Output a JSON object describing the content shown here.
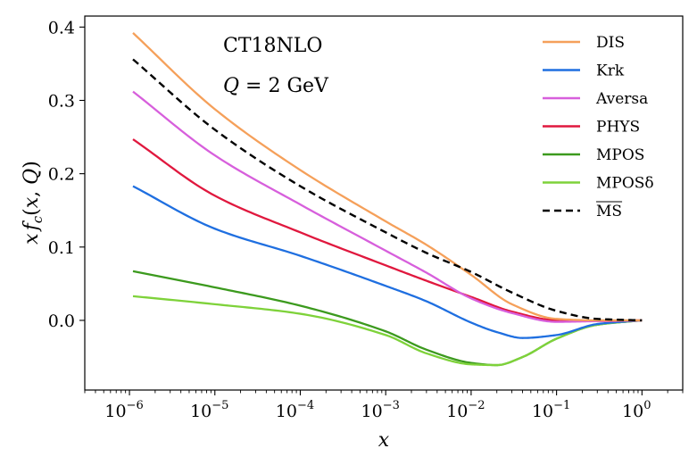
{
  "chart_data": {
    "type": "line",
    "xscale": "log",
    "xlabel": "x",
    "ylabel": "x f_c(x, Q)",
    "ylabel_parts": [
      "x",
      "f",
      "c",
      "(",
      "x",
      ", ",
      "Q",
      ")"
    ],
    "xlim": [
      3e-07,
      3.0
    ],
    "ylim": [
      -0.095,
      0.415
    ],
    "xticks": [
      {
        "exp": "−6",
        "value": 1e-06
      },
      {
        "exp": "−5",
        "value": 1e-05
      },
      {
        "exp": "−4",
        "value": 0.0001
      },
      {
        "exp": "−3",
        "value": 0.001
      },
      {
        "exp": "−2",
        "value": 0.01
      },
      {
        "exp": "−1",
        "value": 0.1
      },
      {
        "exp": "0",
        "value": 1
      }
    ],
    "xtick_base": "10",
    "yticks": [
      {
        "label": "0.0",
        "value": 0.0
      },
      {
        "label": "0.1",
        "value": 0.1
      },
      {
        "label": "0.2",
        "value": 0.2
      },
      {
        "label": "0.3",
        "value": 0.3
      },
      {
        "label": "0.4",
        "value": 0.4
      }
    ],
    "annotations": {
      "line1": "CT18NLO",
      "line2_var": "Q",
      "line2_rest": " = 2 GeV"
    },
    "legend_position": "top-right",
    "series": [
      {
        "name": "DIS",
        "color": "#f5a05a",
        "dash": false,
        "x": [
          1.1e-06,
          1e-05,
          0.0001,
          0.001,
          0.003,
          0.01,
          0.03,
          0.1,
          0.3,
          1.0
        ],
        "y": [
          0.392,
          0.288,
          0.205,
          0.135,
          0.103,
          0.062,
          0.022,
          0.002,
          0.0,
          0.0
        ]
      },
      {
        "name": "Krk",
        "color": "#1f6fe0",
        "dash": false,
        "x": [
          1.1e-06,
          1e-05,
          0.0001,
          0.001,
          0.003,
          0.01,
          0.02,
          0.04,
          0.1,
          0.3,
          1.0
        ],
        "y": [
          0.183,
          0.125,
          0.088,
          0.047,
          0.026,
          -0.003,
          -0.016,
          -0.024,
          -0.02,
          -0.005,
          0.0
        ]
      },
      {
        "name": "Aversa",
        "color": "#d75fdc",
        "dash": false,
        "x": [
          1.1e-06,
          1e-05,
          0.0001,
          0.001,
          0.003,
          0.01,
          0.03,
          0.1,
          0.3,
          1.0
        ],
        "y": [
          0.312,
          0.225,
          0.158,
          0.095,
          0.065,
          0.03,
          0.01,
          -0.002,
          -0.001,
          0.0
        ]
      },
      {
        "name": "PHYS",
        "color": "#e0183e",
        "dash": false,
        "x": [
          1.1e-06,
          1e-05,
          0.0001,
          0.001,
          0.003,
          0.01,
          0.03,
          0.1,
          0.3,
          1.0
        ],
        "y": [
          0.247,
          0.17,
          0.12,
          0.075,
          0.054,
          0.032,
          0.012,
          0.0,
          -0.001,
          0.0
        ]
      },
      {
        "name": "MPOS",
        "color": "#3c9a1e",
        "dash": false,
        "x": [
          1.1e-06,
          1e-05,
          0.0001,
          0.001,
          0.003,
          0.01,
          0.02,
          0.04,
          0.1,
          0.3,
          1.0
        ],
        "y": [
          0.067,
          0.045,
          0.02,
          -0.015,
          -0.04,
          -0.058,
          -0.061,
          -0.05,
          -0.025,
          -0.006,
          0.0
        ]
      },
      {
        "name": "MPOSδ",
        "color": "#7ed23a",
        "dash": false,
        "x": [
          1.1e-06,
          1e-05,
          0.0001,
          0.001,
          0.003,
          0.01,
          0.02,
          0.04,
          0.1,
          0.3,
          1.0
        ],
        "y": [
          0.033,
          0.022,
          0.009,
          -0.02,
          -0.045,
          -0.06,
          -0.061,
          -0.05,
          -0.025,
          -0.006,
          0.0
        ]
      },
      {
        "name": "MS",
        "overline": true,
        "color": "#000000",
        "dash": true,
        "x": [
          1.1e-06,
          1e-05,
          0.0001,
          0.001,
          0.003,
          0.01,
          0.03,
          0.1,
          0.3,
          1.0
        ],
        "y": [
          0.356,
          0.26,
          0.183,
          0.12,
          0.092,
          0.066,
          0.038,
          0.013,
          0.002,
          0.0
        ]
      }
    ]
  }
}
